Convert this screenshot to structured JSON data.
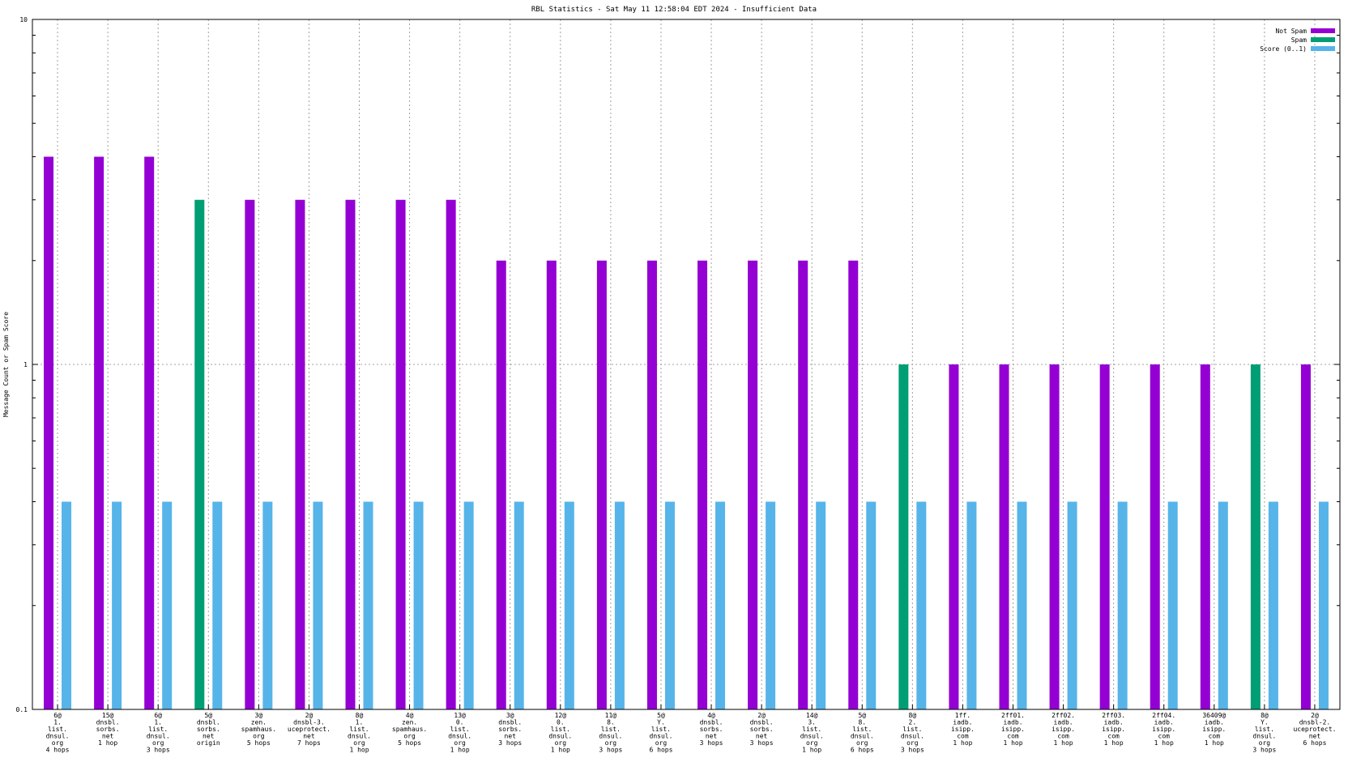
{
  "chart_data": {
    "type": "bar",
    "title": "RBL Statistics - Sat May 11 12:58:04 EDT 2024 - Insufficient Data",
    "xlabel": "",
    "ylabel": "Message Count or Spam Score",
    "yscale": "log",
    "ylim": [
      0.1,
      10
    ],
    "yticks": [
      "10",
      "1",
      "0.1"
    ],
    "grid": true,
    "legend_position": "top-right",
    "categories": [
      [
        "6@",
        "1.",
        "list.",
        "dnsul.",
        "org",
        "4 hops"
      ],
      [
        "15@",
        "dnsbl.",
        "sorbs.",
        "net",
        "1 hop"
      ],
      [
        "6@",
        "1.",
        "list.",
        "dnsul.",
        "org",
        "3 hops"
      ],
      [
        "5@",
        "dnsbl.",
        "sorbs.",
        "net",
        "origin"
      ],
      [
        "3@",
        "zen.",
        "spamhaus.",
        "org",
        "5 hops"
      ],
      [
        "2@",
        "dnsbl-3.",
        "uceprotect.",
        "net",
        "7 hops"
      ],
      [
        "8@",
        "1.",
        "list.",
        "dnsul.",
        "org",
        "1 hop"
      ],
      [
        "4@",
        "zen.",
        "spamhaus.",
        "org",
        "5 hops"
      ],
      [
        "13@",
        "0.",
        "list.",
        "dnsul.",
        "org",
        "1 hop"
      ],
      [
        "3@",
        "dnsbl.",
        "sorbs.",
        "net",
        "3 hops"
      ],
      [
        "12@",
        "0.",
        "list.",
        "dnsul.",
        "org",
        "1 hop"
      ],
      [
        "11@",
        "8.",
        "list.",
        "dnsul.",
        "org",
        "3 hops"
      ],
      [
        "5@",
        "Y.",
        "list.",
        "dnsul.",
        "org",
        "6 hops"
      ],
      [
        "4@",
        "dnsbl.",
        "sorbs.",
        "net",
        "3 hops"
      ],
      [
        "2@",
        "dnsbl.",
        "sorbs.",
        "net",
        "3 hops"
      ],
      [
        "14@",
        "3.",
        "list.",
        "dnsul.",
        "org",
        "1 hop"
      ],
      [
        "5@",
        "8.",
        "list.",
        "dnsul.",
        "org",
        "6 hops"
      ],
      [
        "8@",
        "2.",
        "list.",
        "dnsul.",
        "org",
        "3 hops"
      ],
      [
        "1ff.",
        "iadb.",
        "isipp.",
        "com",
        "1 hop"
      ],
      [
        "2ff01.",
        "iadb.",
        "isipp.",
        "com",
        "1 hop"
      ],
      [
        "2ff02.",
        "iadb.",
        "isipp.",
        "com",
        "1 hop"
      ],
      [
        "2ff03.",
        "iadb.",
        "isipp.",
        "com",
        "1 hop"
      ],
      [
        "2ff04.",
        "iadb.",
        "isipp.",
        "com",
        "1 hop"
      ],
      [
        "36409@",
        "iadb.",
        "isipp.",
        "com",
        "1 hop"
      ],
      [
        "8@",
        "Y.",
        "list.",
        "dnsul.",
        "org",
        "3 hops"
      ],
      [
        "2@",
        "dnsbl-2.",
        "uceprotect.",
        "net",
        "6 hops"
      ]
    ],
    "series": [
      {
        "name": "Not Spam",
        "color": "#9400d3",
        "values": [
          4,
          4,
          4,
          null,
          3,
          3,
          3,
          3,
          3,
          2,
          2,
          2,
          2,
          2,
          2,
          2,
          2,
          null,
          1,
          1,
          1,
          1,
          1,
          1,
          null,
          1
        ]
      },
      {
        "name": "Spam",
        "color": "#009e73",
        "values": [
          null,
          null,
          null,
          3,
          null,
          null,
          null,
          null,
          null,
          null,
          null,
          null,
          null,
          null,
          null,
          null,
          null,
          1,
          null,
          null,
          null,
          null,
          null,
          null,
          1,
          null
        ]
      },
      {
        "name": "Score (0..1)",
        "color": "#56b4e9",
        "values": [
          0.4,
          0.4,
          0.4,
          0.4,
          0.4,
          0.4,
          0.4,
          0.4,
          0.4,
          0.4,
          0.4,
          0.4,
          0.4,
          0.4,
          0.4,
          0.4,
          0.4,
          0.4,
          0.4,
          0.4,
          0.4,
          0.4,
          0.4,
          0.4,
          0.4,
          0.4
        ]
      }
    ]
  }
}
